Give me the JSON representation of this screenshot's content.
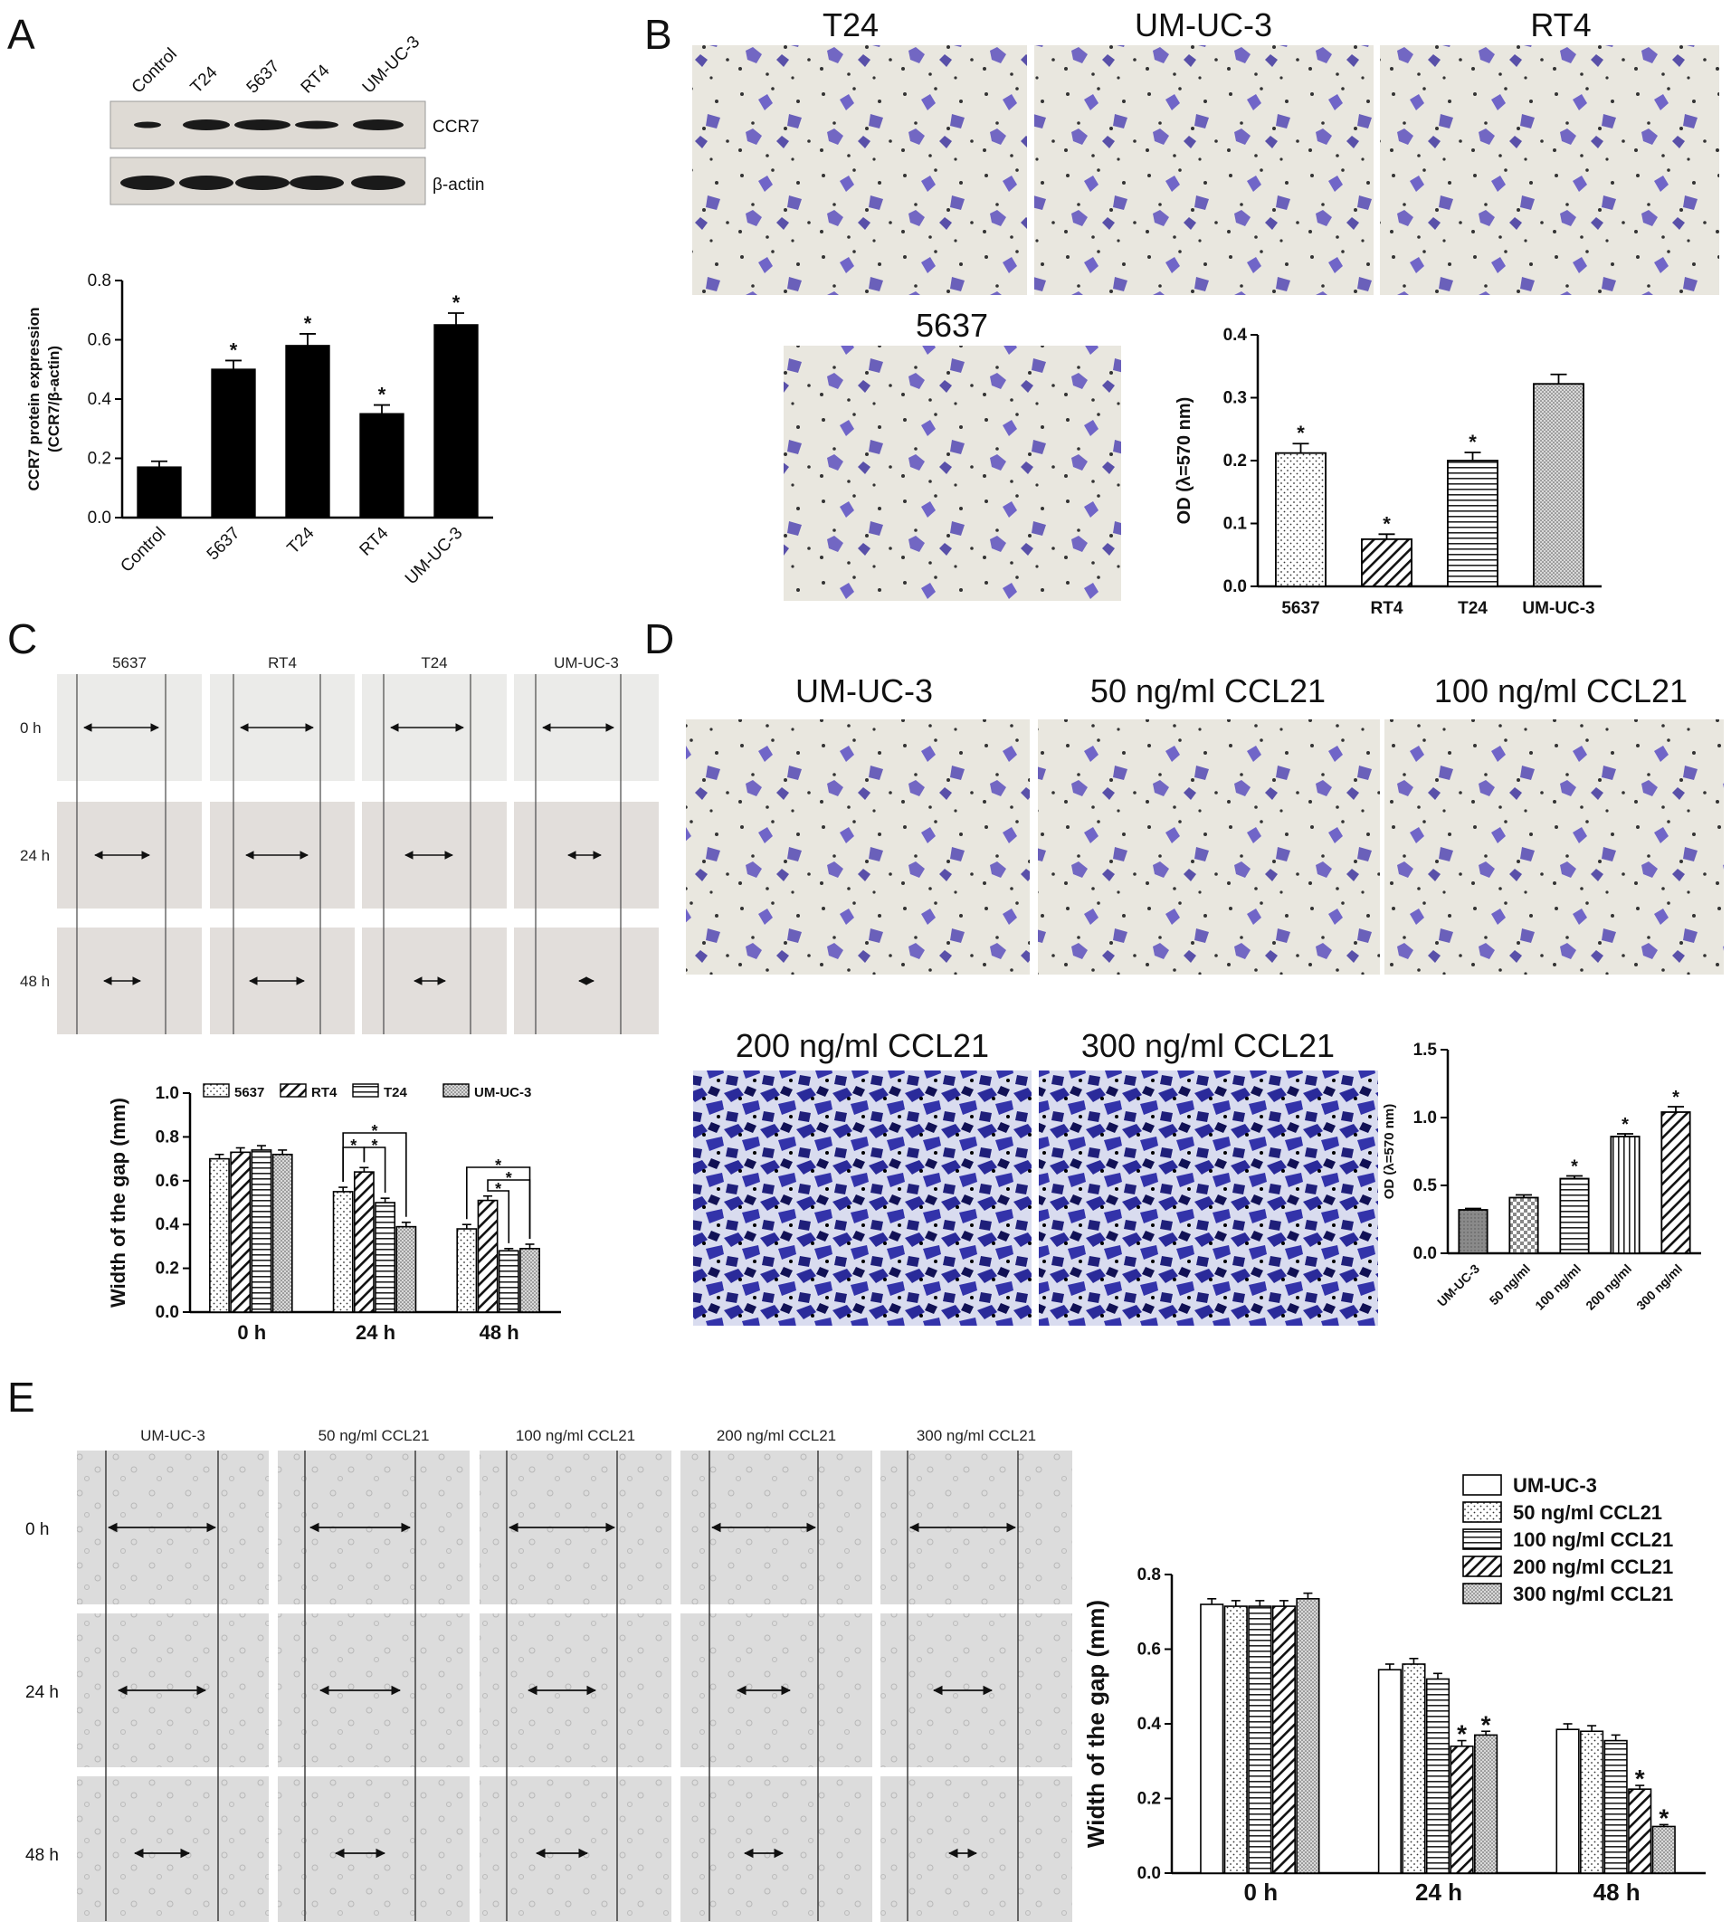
{
  "panels": {
    "A": {
      "label": "A",
      "blot_lanes": [
        "Control",
        "T24",
        "5637",
        "RT4",
        "UM-UC-3"
      ],
      "blot_rows": [
        "CCR7",
        "β-actin"
      ]
    },
    "B": {
      "label": "B",
      "images": [
        "T24",
        "UM-UC-3",
        "RT4",
        "5637"
      ]
    },
    "C": {
      "label": "C",
      "columns": [
        "5637",
        "RT4",
        "T24",
        "UM-UC-3"
      ],
      "rows": [
        "0 h",
        "24 h",
        "48 h"
      ]
    },
    "D": {
      "label": "D",
      "images": [
        "UM-UC-3",
        "50 ng/ml CCL21",
        "100 ng/ml CCL21",
        "200 ng/ml CCL21",
        "300 ng/ml CCL21"
      ]
    },
    "E": {
      "label": "E",
      "columns": [
        "UM-UC-3",
        "50 ng/ml CCL21",
        "100 ng/ml CCL21",
        "200 ng/ml CCL21",
        "300 ng/ml CCL21"
      ],
      "rows": [
        "0 h",
        "24 h",
        "48 h"
      ]
    }
  },
  "colors": {
    "bar_fill": "#000000",
    "stain": "#4a3fb0",
    "membrane_bg": "#e9e7df",
    "wound_bg": "#d8d8d8"
  },
  "chart_data": [
    {
      "id": "A",
      "type": "bar",
      "categories": [
        "Control",
        "5637",
        "T24",
        "RT4",
        "UM-UC-3"
      ],
      "values": [
        0.17,
        0.5,
        0.58,
        0.35,
        0.65
      ],
      "errors": [
        0.02,
        0.03,
        0.04,
        0.03,
        0.04
      ],
      "significance": [
        "",
        "*",
        "*",
        "*",
        "*"
      ],
      "ylabel": "CCR7 protein expression\n(CCR7/β-actin)",
      "ylim": [
        0,
        0.8
      ],
      "yticks": [
        "0.0",
        "0.2",
        "0.4",
        "0.6",
        "0.8"
      ],
      "grid": false
    },
    {
      "id": "B",
      "type": "bar",
      "categories": [
        "5637",
        "RT4",
        "T24",
        "UM-UC-3"
      ],
      "values": [
        0.212,
        0.075,
        0.2,
        0.322
      ],
      "errors": [
        0.015,
        0.008,
        0.013,
        0.015
      ],
      "significance": [
        "*",
        "*",
        "*",
        ""
      ],
      "patterns": [
        "dots",
        "diag",
        "horiz",
        "dense"
      ],
      "ylabel": "OD (λ=570 nm)",
      "ylim": [
        0,
        0.4
      ],
      "yticks": [
        "0.0",
        "0.1",
        "0.2",
        "0.3",
        "0.4"
      ],
      "grid": false
    },
    {
      "id": "C",
      "type": "bar",
      "categories": [
        "0 h",
        "24 h",
        "48 h"
      ],
      "series": [
        {
          "name": "5637",
          "pattern": "dots",
          "values": [
            0.7,
            0.55,
            0.38
          ],
          "errors": [
            0.02,
            0.02,
            0.02
          ]
        },
        {
          "name": "RT4",
          "pattern": "diag",
          "values": [
            0.73,
            0.64,
            0.51
          ],
          "errors": [
            0.02,
            0.02,
            0.02
          ]
        },
        {
          "name": "T24",
          "pattern": "horiz",
          "values": [
            0.74,
            0.5,
            0.28
          ],
          "errors": [
            0.02,
            0.02,
            0.01
          ]
        },
        {
          "name": "UM-UC-3",
          "pattern": "dense",
          "values": [
            0.72,
            0.39,
            0.29
          ],
          "errors": [
            0.02,
            0.02,
            0.02
          ]
        }
      ],
      "ylabel": "Width of the gap (mm)",
      "ylim": [
        0,
        1.0
      ],
      "yticks": [
        "0.0",
        "0.2",
        "0.4",
        "0.6",
        "0.8",
        "1.0"
      ],
      "legend": "top",
      "grid": false
    },
    {
      "id": "D",
      "type": "bar",
      "categories": [
        "UM-UC-3",
        "50 ng/ml",
        "100 ng/ml",
        "200 ng/ml",
        "300 ng/ml"
      ],
      "values": [
        0.32,
        0.41,
        0.55,
        0.86,
        1.04
      ],
      "errors": [
        0.01,
        0.02,
        0.02,
        0.02,
        0.04
      ],
      "significance": [
        "",
        "",
        "*",
        "*",
        "*"
      ],
      "patterns": [
        "gray",
        "check",
        "horiz",
        "vert",
        "diag"
      ],
      "ylabel": "OD (λ=570 nm)",
      "ylim": [
        0,
        1.5
      ],
      "yticks": [
        "0.0",
        "0.5",
        "1.0",
        "1.5"
      ],
      "grid": false
    },
    {
      "id": "E",
      "type": "bar",
      "categories": [
        "0 h",
        "24 h",
        "48 h"
      ],
      "series": [
        {
          "name": "UM-UC-3",
          "pattern": "white",
          "values": [
            0.72,
            0.545,
            0.385
          ],
          "errors": [
            0.015,
            0.015,
            0.015
          ]
        },
        {
          "name": "50 ng/ml CCL21",
          "pattern": "dots",
          "values": [
            0.715,
            0.56,
            0.38
          ],
          "errors": [
            0.015,
            0.015,
            0.015
          ]
        },
        {
          "name": "100 ng/ml CCL21",
          "pattern": "horiz",
          "values": [
            0.715,
            0.52,
            0.355
          ],
          "errors": [
            0.015,
            0.015,
            0.015
          ]
        },
        {
          "name": "200 ng/ml CCL21",
          "pattern": "diag",
          "values": [
            0.715,
            0.34,
            0.225
          ],
          "errors": [
            0.015,
            0.015,
            0.01
          ]
        },
        {
          "name": "300 ng/ml CCL21",
          "pattern": "dense",
          "values": [
            0.735,
            0.37,
            0.125
          ],
          "errors": [
            0.015,
            0.01,
            0.005
          ]
        }
      ],
      "significance_24h": [
        "",
        "",
        "",
        "*",
        "*"
      ],
      "significance_48h": [
        "",
        "",
        "",
        "*",
        "*"
      ],
      "ylabel": "Width of the gap (mm)",
      "ylim": [
        0,
        0.8
      ],
      "yticks": [
        "0.0",
        "0.2",
        "0.4",
        "0.6",
        "0.8"
      ],
      "legend": "top-right",
      "grid": false
    }
  ]
}
